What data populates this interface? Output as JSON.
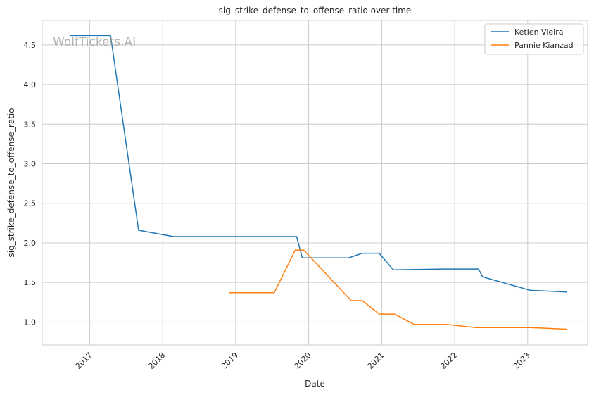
{
  "chart_data": {
    "type": "line",
    "title": "sig_strike_defense_to_offense_ratio over time",
    "xlabel": "Date",
    "ylabel": "sig_strike_defense_to_offense_ratio",
    "watermark": "WolfTickets.AI",
    "x_ticks": [
      "2017",
      "2018",
      "2019",
      "2020",
      "2021",
      "2022",
      "2023"
    ],
    "y_ticks": [
      "1.0",
      "1.5",
      "2.0",
      "2.5",
      "3.0",
      "3.5",
      "4.0",
      "4.5"
    ],
    "xlim": [
      "2016-05-08",
      "2023-10-28"
    ],
    "ylim": [
      0.71,
      4.81
    ],
    "grid": true,
    "legend_position": "top-right",
    "series": [
      {
        "name": "Ketlen Vieira",
        "color": "#1f77b4",
        "points": [
          [
            "2016-09-24",
            4.62
          ],
          [
            "2017-04-15",
            4.62
          ],
          [
            "2017-09-02",
            2.16
          ],
          [
            "2018-02-24",
            2.08
          ],
          [
            "2019-11-02",
            2.08
          ],
          [
            "2019-11-30",
            1.81
          ],
          [
            "2020-07-18",
            1.81
          ],
          [
            "2020-09-26",
            1.87
          ],
          [
            "2020-12-19",
            1.87
          ],
          [
            "2021-02-27",
            1.66
          ],
          [
            "2021-11-06",
            1.67
          ],
          [
            "2022-04-30",
            1.67
          ],
          [
            "2022-05-21",
            1.57
          ],
          [
            "2023-01-14",
            1.4
          ],
          [
            "2023-07-15",
            1.38
          ]
        ]
      },
      {
        "name": "Pannie Kianzad",
        "color": "#ff7f0e",
        "points": [
          [
            "2018-11-30",
            1.37
          ],
          [
            "2019-07-13",
            1.37
          ],
          [
            "2019-10-26",
            1.91
          ],
          [
            "2019-12-07",
            1.91
          ],
          [
            "2020-08-01",
            1.27
          ],
          [
            "2020-09-26",
            1.27
          ],
          [
            "2020-12-19",
            1.1
          ],
          [
            "2021-03-06",
            1.1
          ],
          [
            "2021-06-12",
            0.97
          ],
          [
            "2021-11-20",
            0.97
          ],
          [
            "2022-04-16",
            0.93
          ],
          [
            "2023-01-14",
            0.93
          ],
          [
            "2023-07-15",
            0.91
          ]
        ]
      }
    ]
  }
}
